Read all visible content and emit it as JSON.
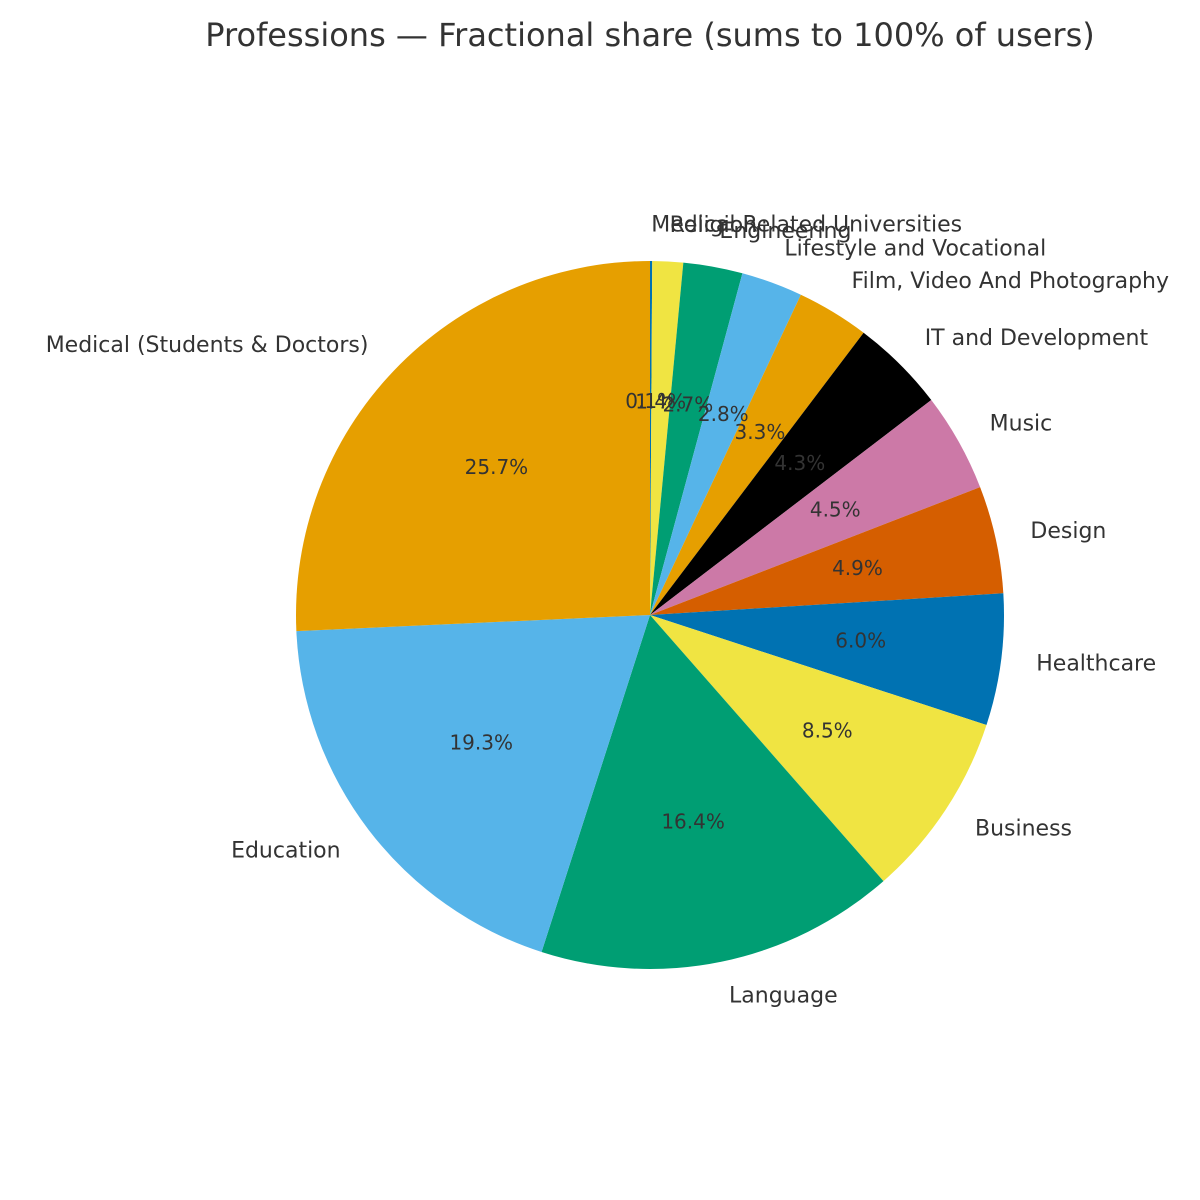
{
  "chart_data": {
    "type": "pie",
    "title": "Professions — Fractional share (sums to 100% of users)",
    "categories": [
      "Medical Related Universities",
      "Religion",
      "Engineering",
      "Lifestyle and Vocational",
      "Film, Video And Photography",
      "IT and Development",
      "Music",
      "Design",
      "Healthcare",
      "Business",
      "Language",
      "Education",
      "Medical (Students & Doctors)"
    ],
    "values": [
      0.1,
      1.4,
      2.7,
      2.8,
      3.3,
      4.3,
      4.5,
      4.9,
      6.0,
      8.5,
      16.4,
      19.3,
      25.7
    ],
    "value_labels": [
      "0.1%",
      "1.4%",
      "2.7%",
      "2.8%",
      "3.3%",
      "4.3%",
      "4.5%",
      "4.9%",
      "6.0%",
      "8.5%",
      "16.4%",
      "19.3%",
      "25.7%"
    ],
    "colors": [
      "#0072b2",
      "#f0e442",
      "#009e73",
      "#56b4e9",
      "#e69f00",
      "#000000",
      "#cc79a7",
      "#d55e00",
      "#0072b2",
      "#f0e442",
      "#009e73",
      "#56b4e9",
      "#e69f00"
    ]
  }
}
